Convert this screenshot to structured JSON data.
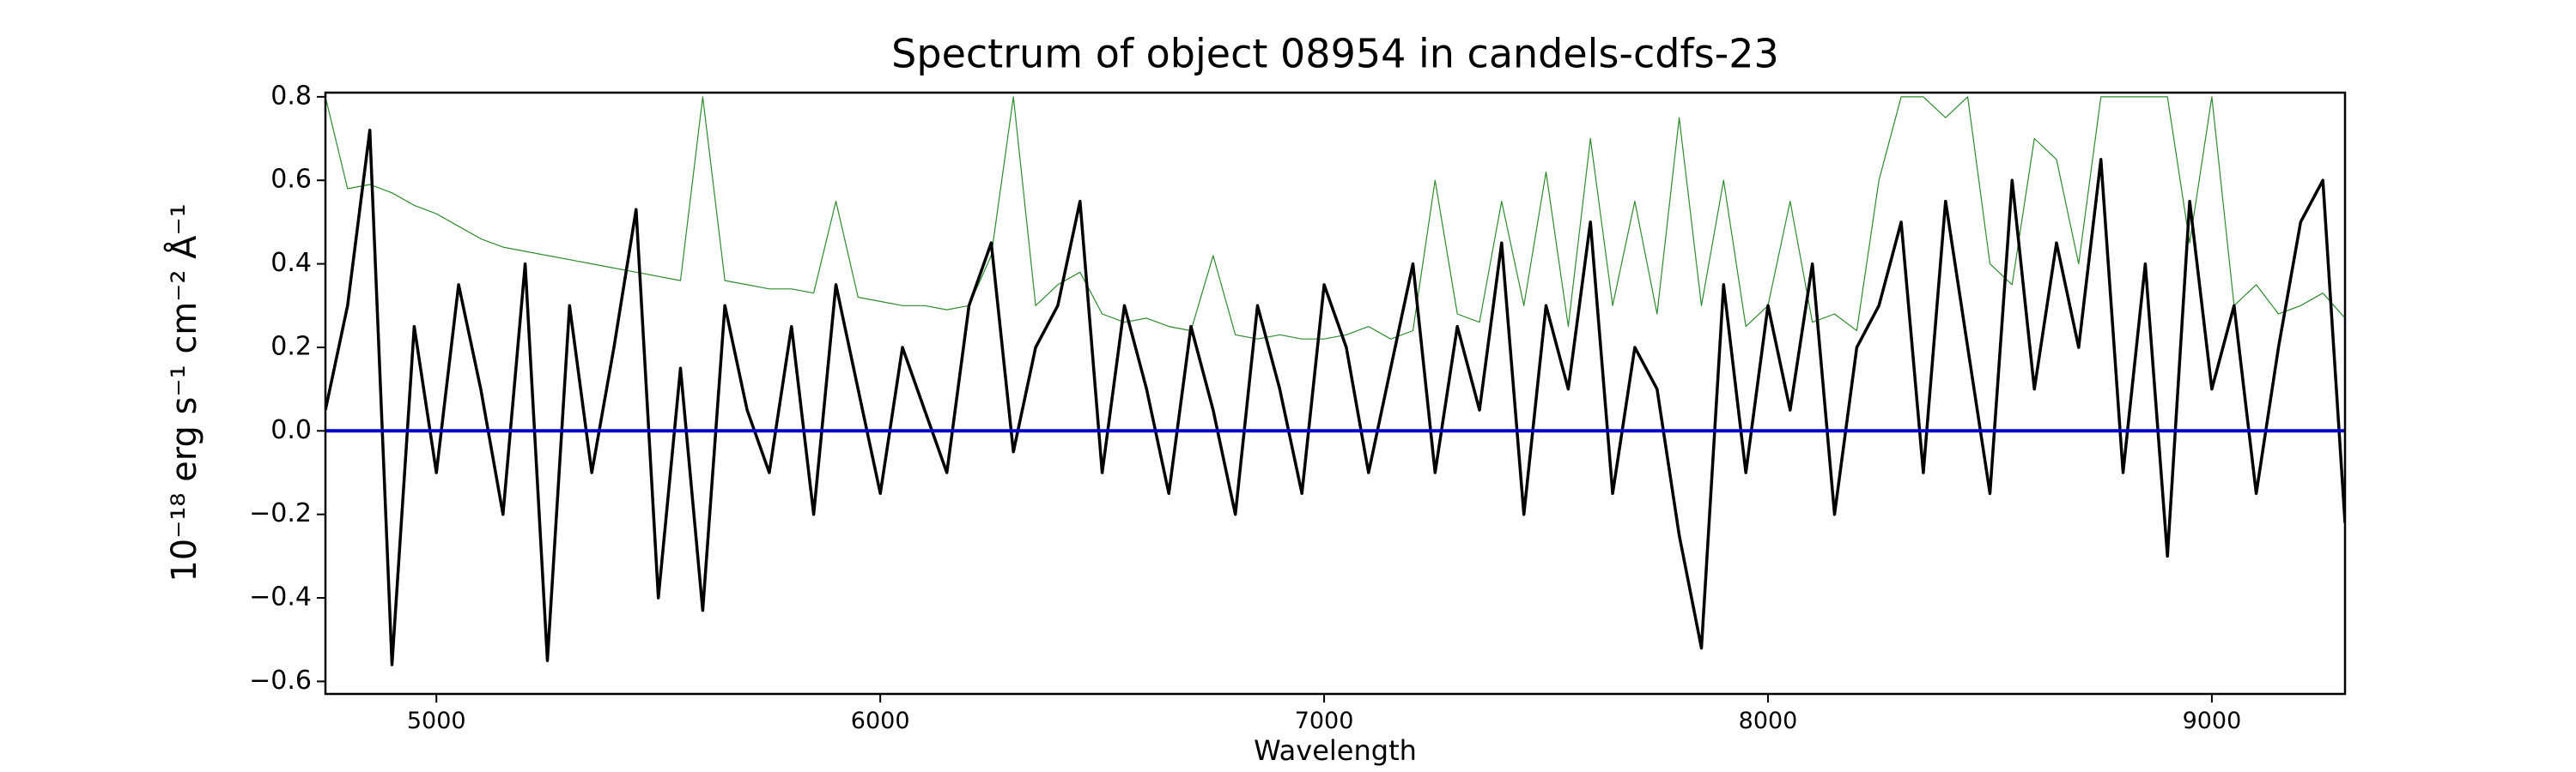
{
  "chart_data": {
    "type": "line",
    "title": "Spectrum of object 08954 in candels-cdfs-23",
    "xlabel": "Wavelength",
    "ylabel": "10⁻¹⁸ erg s⁻¹ cm⁻² Å⁻¹",
    "x": [
      4750,
      4800,
      4850,
      4900,
      4950,
      5000,
      5050,
      5100,
      5150,
      5200,
      5250,
      5300,
      5350,
      5400,
      5450,
      5500,
      5550,
      5600,
      5650,
      5700,
      5750,
      5800,
      5850,
      5900,
      5950,
      6000,
      6050,
      6100,
      6150,
      6200,
      6250,
      6300,
      6350,
      6400,
      6450,
      6500,
      6550,
      6600,
      6650,
      6700,
      6750,
      6800,
      6850,
      6900,
      6950,
      7000,
      7050,
      7100,
      7150,
      7200,
      7250,
      7300,
      7350,
      7400,
      7450,
      7500,
      7550,
      7600,
      7650,
      7700,
      7750,
      7800,
      7850,
      7900,
      7950,
      8000,
      8050,
      8100,
      8150,
      8200,
      8250,
      8300,
      8350,
      8400,
      8450,
      8500,
      8550,
      8600,
      8650,
      8700,
      8750,
      8800,
      8850,
      8900,
      8950,
      9000,
      9050,
      9100,
      9150,
      9200,
      9250,
      9300
    ],
    "series": [
      {
        "color": "#2e8b2e",
        "width": 1.2,
        "values": [
          0.8,
          0.58,
          0.59,
          0.57,
          0.54,
          0.52,
          0.49,
          0.46,
          0.44,
          0.43,
          0.42,
          0.41,
          0.4,
          0.39,
          0.38,
          0.37,
          0.36,
          0.8,
          0.36,
          0.35,
          0.34,
          0.34,
          0.33,
          0.55,
          0.32,
          0.31,
          0.3,
          0.3,
          0.29,
          0.3,
          0.42,
          0.8,
          0.3,
          0.35,
          0.38,
          0.28,
          0.26,
          0.27,
          0.25,
          0.24,
          0.42,
          0.23,
          0.22,
          0.23,
          0.22,
          0.22,
          0.23,
          0.25,
          0.22,
          0.24,
          0.6,
          0.28,
          0.26,
          0.55,
          0.3,
          0.62,
          0.25,
          0.7,
          0.3,
          0.55,
          0.28,
          0.75,
          0.3,
          0.6,
          0.25,
          0.3,
          0.55,
          0.26,
          0.28,
          0.24,
          0.6,
          0.8,
          0.8,
          0.75,
          0.8,
          0.4,
          0.35,
          0.7,
          0.65,
          0.4,
          0.8,
          0.8,
          0.8,
          0.8,
          0.45,
          0.8,
          0.3,
          0.35,
          0.28,
          0.3,
          0.33,
          0.27
        ]
      },
      {
        "color": "#000000",
        "width": 3.5,
        "values": [
          0.05,
          0.3,
          0.72,
          -0.56,
          0.25,
          -0.1,
          0.35,
          0.1,
          -0.2,
          0.4,
          -0.55,
          0.3,
          -0.1,
          0.2,
          0.53,
          -0.4,
          0.15,
          -0.43,
          0.3,
          0.05,
          -0.1,
          0.25,
          -0.2,
          0.35,
          0.1,
          -0.15,
          0.2,
          0.05,
          -0.1,
          0.3,
          0.45,
          -0.05,
          0.2,
          0.3,
          0.55,
          -0.1,
          0.3,
          0.1,
          -0.15,
          0.25,
          0.05,
          -0.2,
          0.3,
          0.1,
          -0.15,
          0.35,
          0.2,
          -0.1,
          0.15,
          0.4,
          -0.1,
          0.25,
          0.05,
          0.45,
          -0.2,
          0.3,
          0.1,
          0.5,
          -0.15,
          0.2,
          0.1,
          -0.25,
          -0.52,
          0.35,
          -0.1,
          0.3,
          0.05,
          0.4,
          -0.2,
          0.2,
          0.3,
          0.5,
          -0.1,
          0.55,
          0.2,
          -0.15,
          0.6,
          0.1,
          0.45,
          0.2,
          0.65,
          -0.1,
          0.4,
          -0.3,
          0.55,
          0.1,
          0.3,
          -0.15,
          0.2,
          0.5,
          0.6,
          -0.22
        ]
      },
      {
        "color": "#0000cc",
        "width": 4,
        "values": [
          0,
          0,
          0,
          0,
          0,
          0,
          0,
          0,
          0,
          0,
          0,
          0,
          0,
          0,
          0,
          0,
          0,
          0,
          0,
          0,
          0,
          0,
          0,
          0,
          0,
          0,
          0,
          0,
          0,
          0,
          0,
          0,
          0,
          0,
          0,
          0,
          0,
          0,
          0,
          0,
          0,
          0,
          0,
          0,
          0,
          0,
          0,
          0,
          0,
          0,
          0,
          0,
          0,
          0,
          0,
          0,
          0,
          0,
          0,
          0,
          0,
          0,
          0,
          0,
          0,
          0,
          0,
          0,
          0,
          0,
          0,
          0,
          0,
          0,
          0,
          0,
          0,
          0,
          0,
          0,
          0,
          0,
          0,
          0,
          0,
          0,
          0,
          0,
          0,
          0,
          0,
          0
        ]
      }
    ],
    "xlim": [
      4750,
      9300
    ],
    "ylim": [
      -0.63,
      0.81
    ],
    "xticks": [
      5000,
      6000,
      7000,
      8000,
      9000
    ],
    "yticks": [
      {
        "value": -0.6,
        "label": "−0.6"
      },
      {
        "value": -0.4,
        "label": "−0.4"
      },
      {
        "value": -0.2,
        "label": "−0.2"
      },
      {
        "value": 0,
        "label": "0.0"
      },
      0.2,
      0.4,
      0.6,
      0.8
    ],
    "grid": false
  }
}
